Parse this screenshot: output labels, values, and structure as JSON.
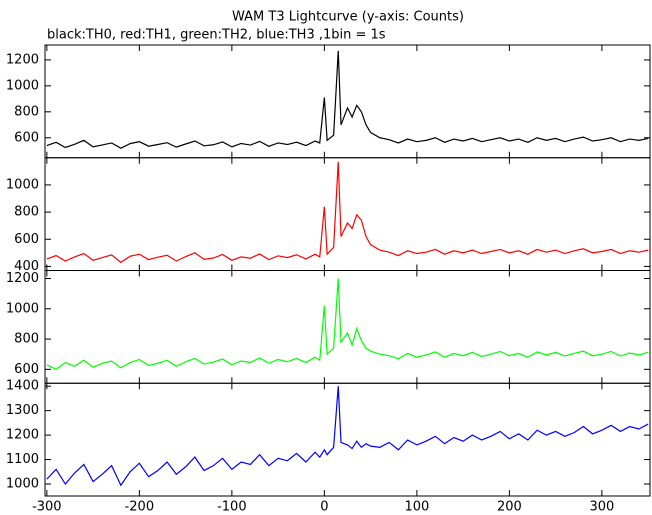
{
  "chart_data": [
    {
      "type": "line",
      "title": "WAM T3 Lightcurve (y-axis: Counts)",
      "subtitle": "black:TH0, red:TH1, green:TH2, blue:TH3 ,1bin = 1s",
      "x": [
        -300,
        -290,
        -280,
        -270,
        -260,
        -250,
        -240,
        -230,
        -220,
        -210,
        -200,
        -190,
        -180,
        -170,
        -160,
        -150,
        -140,
        -130,
        -120,
        -110,
        -100,
        -90,
        -80,
        -70,
        -60,
        -50,
        -40,
        -30,
        -20,
        -10,
        -5,
        0,
        3,
        10,
        15,
        18,
        25,
        30,
        35,
        40,
        45,
        50,
        60,
        70,
        80,
        90,
        100,
        110,
        120,
        130,
        140,
        150,
        160,
        170,
        180,
        190,
        200,
        210,
        220,
        230,
        240,
        250,
        260,
        270,
        280,
        290,
        300,
        310,
        320,
        330,
        340,
        350
      ],
      "series": [
        {
          "name": "TH0",
          "color": "#000000",
          "values": [
            540,
            565,
            525,
            550,
            580,
            530,
            545,
            560,
            520,
            555,
            570,
            535,
            548,
            562,
            528,
            552,
            575,
            538,
            546,
            568,
            530,
            556,
            544,
            572,
            534,
            560,
            548,
            566,
            540,
            575,
            560,
            910,
            580,
            620,
            1270,
            700,
            830,
            760,
            850,
            800,
            700,
            640,
            600,
            585,
            560,
            590,
            570,
            580,
            600,
            565,
            590,
            575,
            595,
            570,
            585,
            600,
            575,
            590,
            565,
            600,
            580,
            595,
            570,
            590,
            605,
            575,
            585,
            600,
            570,
            590,
            580,
            595
          ]
        }
      ],
      "xlim": [
        -302,
        352
      ],
      "xticks": [
        -300,
        -200,
        -100,
        0,
        100,
        200,
        300
      ],
      "ylim": [
        446,
        1315
      ],
      "yticks": [
        600,
        800,
        1000,
        1200
      ]
    },
    {
      "type": "line",
      "x": [
        -300,
        -290,
        -280,
        -270,
        -260,
        -250,
        -240,
        -230,
        -220,
        -210,
        -200,
        -190,
        -180,
        -170,
        -160,
        -150,
        -140,
        -130,
        -120,
        -110,
        -100,
        -90,
        -80,
        -70,
        -60,
        -50,
        -40,
        -30,
        -20,
        -10,
        -5,
        0,
        3,
        10,
        15,
        18,
        25,
        30,
        35,
        40,
        45,
        50,
        60,
        70,
        80,
        90,
        100,
        110,
        120,
        130,
        140,
        150,
        160,
        170,
        180,
        190,
        200,
        210,
        220,
        230,
        240,
        250,
        260,
        270,
        280,
        290,
        300,
        310,
        320,
        330,
        340,
        350
      ],
      "series": [
        {
          "name": "TH1",
          "color": "#ff0000",
          "values": [
            455,
            480,
            440,
            470,
            495,
            445,
            465,
            485,
            430,
            475,
            490,
            450,
            468,
            482,
            440,
            472,
            500,
            452,
            462,
            488,
            445,
            470,
            460,
            492,
            450,
            478,
            465,
            486,
            455,
            490,
            470,
            840,
            490,
            540,
            1170,
            620,
            720,
            680,
            780,
            740,
            620,
            560,
            520,
            505,
            480,
            515,
            495,
            505,
            525,
            490,
            515,
            500,
            520,
            495,
            510,
            525,
            500,
            515,
            490,
            525,
            505,
            520,
            495,
            515,
            530,
            500,
            510,
            525,
            495,
            515,
            505,
            520
          ]
        }
      ],
      "xlim": [
        -302,
        352
      ],
      "xticks": [
        -300,
        -200,
        -100,
        0,
        100,
        200,
        300
      ],
      "ylim": [
        370,
        1200
      ],
      "yticks": [
        400,
        600,
        800,
        1000
      ]
    },
    {
      "type": "line",
      "x": [
        -300,
        -290,
        -280,
        -270,
        -260,
        -250,
        -240,
        -230,
        -220,
        -210,
        -200,
        -190,
        -180,
        -170,
        -160,
        -150,
        -140,
        -130,
        -120,
        -110,
        -100,
        -90,
        -80,
        -70,
        -60,
        -50,
        -40,
        -30,
        -20,
        -10,
        -5,
        0,
        3,
        10,
        15,
        18,
        25,
        30,
        35,
        40,
        45,
        50,
        60,
        70,
        80,
        90,
        100,
        110,
        120,
        130,
        140,
        150,
        160,
        170,
        180,
        190,
        200,
        210,
        220,
        230,
        240,
        250,
        260,
        270,
        280,
        290,
        300,
        310,
        320,
        330,
        340,
        350
      ],
      "series": [
        {
          "name": "TH2",
          "color": "#00ff00",
          "values": [
            630,
            600,
            645,
            620,
            660,
            615,
            640,
            655,
            610,
            645,
            665,
            625,
            640,
            660,
            620,
            650,
            672,
            635,
            648,
            668,
            630,
            655,
            645,
            675,
            640,
            665,
            650,
            672,
            645,
            680,
            660,
            1020,
            700,
            740,
            1200,
            780,
            840,
            760,
            870,
            790,
            740,
            720,
            700,
            690,
            670,
            705,
            680,
            695,
            715,
            680,
            705,
            690,
            712,
            685,
            700,
            718,
            690,
            705,
            680,
            715,
            695,
            712,
            688,
            705,
            720,
            690,
            700,
            718,
            688,
            708,
            695,
            712
          ]
        }
      ],
      "xlim": [
        -302,
        352
      ],
      "xticks": [
        -300,
        -200,
        -100,
        0,
        100,
        200,
        300
      ],
      "ylim": [
        508,
        1253
      ],
      "yticks": [
        600,
        800,
        1000,
        1200
      ]
    },
    {
      "type": "line",
      "x": [
        -300,
        -290,
        -280,
        -270,
        -260,
        -250,
        -240,
        -230,
        -220,
        -210,
        -200,
        -190,
        -180,
        -170,
        -160,
        -150,
        -140,
        -130,
        -120,
        -110,
        -100,
        -90,
        -80,
        -70,
        -60,
        -50,
        -40,
        -30,
        -20,
        -10,
        -5,
        0,
        3,
        10,
        15,
        18,
        25,
        30,
        35,
        40,
        45,
        50,
        60,
        70,
        80,
        90,
        100,
        110,
        120,
        130,
        140,
        150,
        160,
        170,
        180,
        190,
        200,
        210,
        220,
        230,
        240,
        250,
        260,
        270,
        280,
        290,
        300,
        310,
        320,
        330,
        340,
        350
      ],
      "series": [
        {
          "name": "TH3",
          "color": "#0000ff",
          "values": [
            1020,
            1060,
            1000,
            1045,
            1080,
            1010,
            1040,
            1075,
            995,
            1050,
            1085,
            1030,
            1055,
            1090,
            1040,
            1070,
            1110,
            1055,
            1075,
            1105,
            1060,
            1090,
            1080,
            1120,
            1075,
            1105,
            1095,
            1125,
            1090,
            1130,
            1110,
            1140,
            1120,
            1150,
            1400,
            1170,
            1160,
            1145,
            1175,
            1150,
            1165,
            1155,
            1150,
            1170,
            1140,
            1180,
            1160,
            1175,
            1195,
            1165,
            1190,
            1175,
            1200,
            1180,
            1195,
            1215,
            1185,
            1205,
            1180,
            1220,
            1200,
            1215,
            1195,
            1210,
            1235,
            1205,
            1220,
            1240,
            1215,
            1235,
            1225,
            1245
          ]
        }
      ],
      "xlim": [
        -302,
        352
      ],
      "xticks": [
        -300,
        -200,
        -100,
        0,
        100,
        200,
        300
      ],
      "ylim": [
        951,
        1412
      ],
      "yticks": [
        1000,
        1100,
        1200,
        1300,
        1400
      ]
    }
  ]
}
